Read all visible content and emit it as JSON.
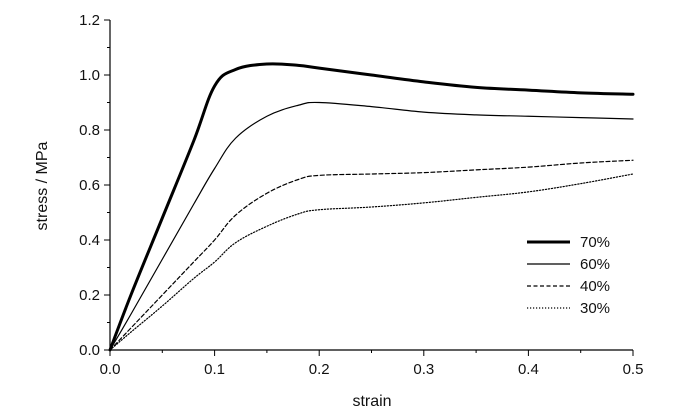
{
  "chart_data": {
    "type": "line",
    "xlabel": "strain",
    "ylabel": "stress / MPa",
    "xlim": [
      0,
      0.5
    ],
    "ylim": [
      0,
      1.2
    ],
    "xticks": [
      0.0,
      0.1,
      0.2,
      0.3,
      0.4,
      0.5
    ],
    "xtick_labels": [
      "0.0",
      "0.1",
      "0.2",
      "0.3",
      "0.4",
      "0.5"
    ],
    "yticks": [
      0.0,
      0.2,
      0.4,
      0.6,
      0.8,
      1.0,
      1.2
    ],
    "ytick_labels": [
      "0.0",
      "0.2",
      "0.4",
      "0.6",
      "0.8",
      "1.0",
      "1.2"
    ],
    "grid": false,
    "legend_position": "lower-right",
    "series": [
      {
        "name": "70%",
        "line_style": "solid-thick",
        "x": [
          0,
          0.02,
          0.05,
          0.08,
          0.1,
          0.12,
          0.15,
          0.18,
          0.2,
          0.25,
          0.3,
          0.35,
          0.4,
          0.45,
          0.5
        ],
        "y": [
          0,
          0.2,
          0.48,
          0.76,
          0.96,
          1.02,
          1.04,
          1.035,
          1.025,
          1.0,
          0.975,
          0.955,
          0.945,
          0.935,
          0.93
        ]
      },
      {
        "name": "60%",
        "line_style": "solid-thin",
        "x": [
          0,
          0.02,
          0.05,
          0.08,
          0.1,
          0.12,
          0.15,
          0.18,
          0.2,
          0.25,
          0.3,
          0.35,
          0.4,
          0.45,
          0.5
        ],
        "y": [
          0,
          0.13,
          0.33,
          0.53,
          0.66,
          0.77,
          0.85,
          0.89,
          0.9,
          0.885,
          0.865,
          0.855,
          0.85,
          0.845,
          0.84
        ]
      },
      {
        "name": "40%",
        "line_style": "dashed",
        "x": [
          0,
          0.02,
          0.05,
          0.08,
          0.1,
          0.12,
          0.15,
          0.18,
          0.2,
          0.25,
          0.3,
          0.35,
          0.4,
          0.45,
          0.5
        ],
        "y": [
          0,
          0.08,
          0.2,
          0.32,
          0.4,
          0.49,
          0.57,
          0.62,
          0.635,
          0.64,
          0.645,
          0.655,
          0.665,
          0.68,
          0.69
        ]
      },
      {
        "name": "30%",
        "line_style": "dotted",
        "x": [
          0,
          0.02,
          0.05,
          0.08,
          0.1,
          0.12,
          0.15,
          0.18,
          0.2,
          0.25,
          0.3,
          0.35,
          0.4,
          0.45,
          0.5
        ],
        "y": [
          0,
          0.065,
          0.16,
          0.26,
          0.32,
          0.39,
          0.45,
          0.495,
          0.51,
          0.52,
          0.535,
          0.555,
          0.575,
          0.605,
          0.64
        ]
      }
    ],
    "colors": {
      "line": "#000000",
      "axis": "#000000"
    }
  }
}
